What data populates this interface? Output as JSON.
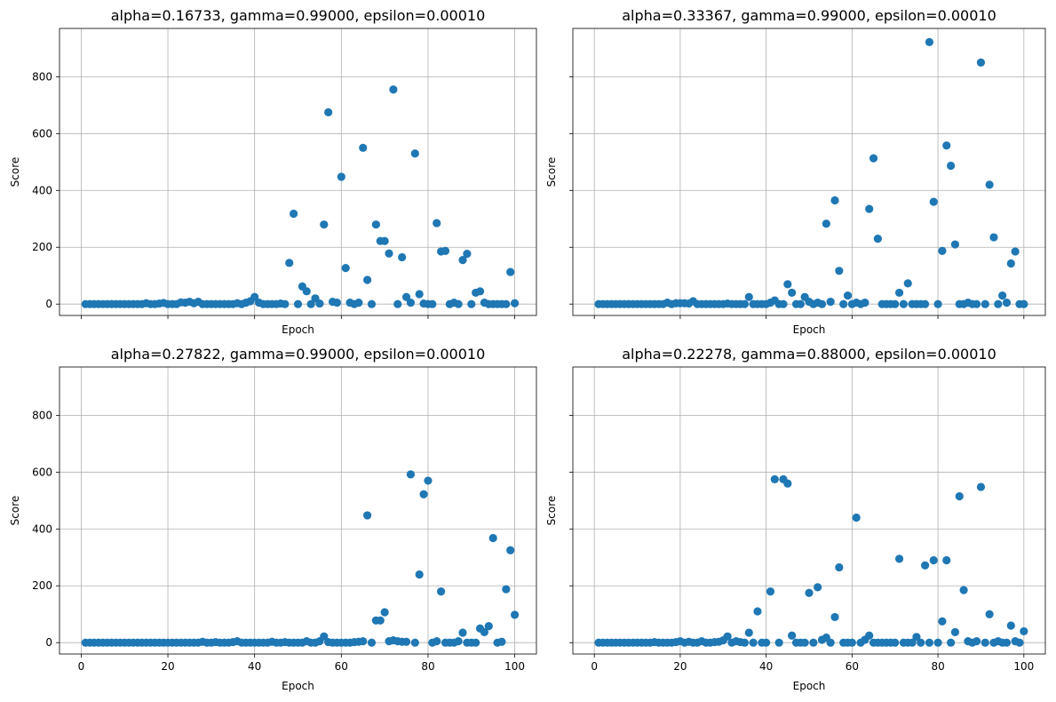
{
  "figure": {
    "background": "#ffffff",
    "marker_color": "#1f77b4",
    "grid_color": "#b0b0b0"
  },
  "chart_data": [
    {
      "type": "scatter",
      "title": "alpha=0.16733, gamma=0.99000, epsilon=0.00010",
      "xlabel": "Epoch",
      "ylabel": "Score",
      "xlim": [
        -5,
        105
      ],
      "ylim": [
        -40,
        970
      ],
      "xticks": [
        0,
        20,
        40,
        60,
        80,
        100
      ],
      "yticks": [
        0,
        200,
        400,
        600,
        800
      ],
      "show_xticklabels": false,
      "show_yticklabels": true,
      "grid": true,
      "x": [
        1,
        2,
        3,
        4,
        5,
        6,
        7,
        8,
        9,
        10,
        11,
        12,
        13,
        14,
        15,
        16,
        17,
        18,
        19,
        20,
        21,
        22,
        23,
        24,
        25,
        26,
        27,
        28,
        29,
        30,
        31,
        32,
        33,
        34,
        35,
        36,
        37,
        38,
        39,
        40,
        41,
        42,
        43,
        44,
        45,
        46,
        47,
        48,
        49,
        50,
        51,
        52,
        53,
        54,
        55,
        56,
        57,
        58,
        59,
        60,
        61,
        62,
        63,
        64,
        65,
        66,
        67,
        68,
        69,
        70,
        71,
        72,
        73,
        74,
        75,
        76,
        77,
        78,
        79,
        80,
        81,
        82,
        83,
        84,
        85,
        86,
        87,
        88,
        89,
        90,
        91,
        92,
        93,
        94,
        95,
        96,
        97,
        98,
        99,
        100
      ],
      "y": [
        0,
        0,
        0,
        0,
        0,
        0,
        0,
        0,
        0,
        0,
        0,
        0,
        0,
        0,
        3,
        0,
        0,
        2,
        4,
        0,
        0,
        0,
        6,
        5,
        8,
        3,
        8,
        0,
        0,
        0,
        0,
        0,
        0,
        0,
        0,
        3,
        0,
        5,
        10,
        25,
        5,
        0,
        0,
        0,
        0,
        2,
        0,
        145,
        318,
        0,
        62,
        45,
        0,
        20,
        2,
        280,
        675,
        8,
        5,
        448,
        127,
        5,
        0,
        5,
        550,
        85,
        0,
        280,
        222,
        222,
        178,
        755,
        0,
        165,
        25,
        5,
        530,
        35,
        2,
        0,
        0,
        285,
        185,
        187,
        0,
        5,
        0,
        155,
        177,
        0,
        40,
        45,
        5,
        0,
        0,
        0,
        0,
        0,
        113,
        3
      ]
    },
    {
      "type": "scatter",
      "title": "alpha=0.33367, gamma=0.99000, epsilon=0.00010",
      "xlabel": "Epoch",
      "ylabel": "Score",
      "xlim": [
        -5,
        105
      ],
      "ylim": [
        -40,
        970
      ],
      "xticks": [
        0,
        20,
        40,
        60,
        80,
        100
      ],
      "yticks": [
        0,
        200,
        400,
        600,
        800
      ],
      "show_xticklabels": false,
      "show_yticklabels": false,
      "grid": true,
      "x": [
        1,
        2,
        3,
        4,
        5,
        6,
        7,
        8,
        9,
        10,
        11,
        12,
        13,
        14,
        15,
        16,
        17,
        18,
        19,
        20,
        21,
        22,
        23,
        24,
        25,
        26,
        27,
        28,
        29,
        30,
        31,
        32,
        33,
        34,
        35,
        36,
        37,
        38,
        39,
        40,
        41,
        42,
        43,
        44,
        45,
        46,
        47,
        48,
        49,
        50,
        51,
        52,
        53,
        54,
        55,
        56,
        57,
        58,
        59,
        60,
        61,
        62,
        63,
        64,
        65,
        66,
        67,
        68,
        69,
        70,
        71,
        72,
        73,
        74,
        75,
        76,
        77,
        78,
        79,
        80,
        81,
        82,
        83,
        84,
        85,
        86,
        87,
        88,
        89,
        90,
        91,
        92,
        93,
        94,
        95,
        96,
        97,
        98,
        99,
        100
      ],
      "y": [
        0,
        0,
        0,
        0,
        0,
        0,
        0,
        0,
        0,
        0,
        0,
        0,
        0,
        0,
        0,
        0,
        5,
        0,
        3,
        3,
        3,
        2,
        10,
        0,
        0,
        0,
        0,
        0,
        0,
        0,
        2,
        0,
        0,
        0,
        0,
        25,
        0,
        0,
        0,
        0,
        5,
        13,
        0,
        0,
        70,
        40,
        0,
        0,
        25,
        8,
        0,
        5,
        0,
        283,
        8,
        365,
        117,
        0,
        30,
        0,
        5,
        0,
        5,
        335,
        513,
        230,
        0,
        0,
        0,
        0,
        40,
        0,
        73,
        0,
        0,
        0,
        0,
        922,
        360,
        0,
        187,
        558,
        487,
        210,
        0,
        0,
        5,
        0,
        0,
        850,
        0,
        420,
        235,
        0,
        30,
        5,
        143,
        185,
        0,
        0
      ]
    },
    {
      "type": "scatter",
      "title": "alpha=0.27822, gamma=0.99000, epsilon=0.00010",
      "xlabel": "Epoch",
      "ylabel": "Score",
      "xlim": [
        -5,
        105
      ],
      "ylim": [
        -40,
        970
      ],
      "xticks": [
        0,
        20,
        40,
        60,
        80,
        100
      ],
      "yticks": [
        0,
        200,
        400,
        600,
        800
      ],
      "show_xticklabels": true,
      "show_yticklabels": true,
      "grid": true,
      "x": [
        1,
        2,
        3,
        4,
        5,
        6,
        7,
        8,
        9,
        10,
        11,
        12,
        13,
        14,
        15,
        16,
        17,
        18,
        19,
        20,
        21,
        22,
        23,
        24,
        25,
        26,
        27,
        28,
        29,
        30,
        31,
        32,
        33,
        34,
        35,
        36,
        37,
        38,
        39,
        40,
        41,
        42,
        43,
        44,
        45,
        46,
        47,
        48,
        49,
        50,
        51,
        52,
        53,
        54,
        55,
        56,
        57,
        58,
        59,
        60,
        61,
        62,
        63,
        64,
        65,
        66,
        67,
        68,
        69,
        70,
        71,
        72,
        73,
        74,
        75,
        76,
        77,
        78,
        79,
        80,
        81,
        82,
        83,
        84,
        85,
        86,
        87,
        88,
        89,
        90,
        91,
        92,
        93,
        94,
        95,
        96,
        97,
        98,
        99,
        100
      ],
      "y": [
        0,
        0,
        0,
        0,
        0,
        0,
        0,
        0,
        0,
        0,
        0,
        0,
        0,
        0,
        0,
        0,
        0,
        0,
        0,
        0,
        0,
        0,
        0,
        0,
        0,
        0,
        0,
        3,
        0,
        0,
        2,
        0,
        0,
        0,
        2,
        5,
        0,
        0,
        0,
        0,
        0,
        0,
        0,
        3,
        0,
        0,
        2,
        0,
        0,
        0,
        0,
        5,
        0,
        0,
        5,
        22,
        2,
        0,
        0,
        0,
        0,
        0,
        2,
        3,
        5,
        448,
        0,
        78,
        78,
        107,
        5,
        8,
        5,
        3,
        3,
        592,
        0,
        240,
        522,
        570,
        0,
        5,
        180,
        0,
        0,
        0,
        5,
        35,
        0,
        0,
        0,
        50,
        37,
        58,
        368,
        0,
        3,
        188,
        325,
        98
      ]
    },
    {
      "type": "scatter",
      "title": "alpha=0.22278, gamma=0.88000, epsilon=0.00010",
      "xlabel": "Epoch",
      "ylabel": "Score",
      "xlim": [
        -5,
        105
      ],
      "ylim": [
        -40,
        970
      ],
      "xticks": [
        0,
        20,
        40,
        60,
        80,
        100
      ],
      "yticks": [
        0,
        200,
        400,
        600,
        800
      ],
      "show_xticklabels": true,
      "show_yticklabels": false,
      "grid": true,
      "x": [
        1,
        2,
        3,
        4,
        5,
        6,
        7,
        8,
        9,
        10,
        11,
        12,
        13,
        14,
        15,
        16,
        17,
        18,
        19,
        20,
        21,
        22,
        23,
        24,
        25,
        26,
        27,
        28,
        29,
        30,
        31,
        32,
        33,
        34,
        35,
        36,
        37,
        38,
        39,
        40,
        41,
        42,
        43,
        44,
        45,
        46,
        47,
        48,
        49,
        50,
        51,
        52,
        53,
        54,
        55,
        56,
        57,
        58,
        59,
        60,
        61,
        62,
        63,
        64,
        65,
        66,
        67,
        68,
        69,
        70,
        71,
        72,
        73,
        74,
        75,
        76,
        77,
        78,
        79,
        80,
        81,
        82,
        83,
        84,
        85,
        86,
        87,
        88,
        89,
        90,
        91,
        92,
        93,
        94,
        95,
        96,
        97,
        98,
        99,
        100
      ],
      "y": [
        0,
        0,
        0,
        0,
        0,
        0,
        0,
        0,
        0,
        0,
        0,
        0,
        0,
        2,
        0,
        0,
        0,
        0,
        2,
        5,
        0,
        3,
        0,
        0,
        5,
        0,
        0,
        2,
        3,
        8,
        22,
        0,
        5,
        2,
        0,
        35,
        0,
        110,
        0,
        0,
        180,
        575,
        0,
        575,
        560,
        25,
        0,
        0,
        0,
        175,
        0,
        195,
        10,
        18,
        0,
        90,
        265,
        0,
        0,
        0,
        440,
        0,
        10,
        25,
        0,
        0,
        0,
        0,
        0,
        0,
        295,
        0,
        0,
        0,
        20,
        0,
        272,
        0,
        290,
        0,
        75,
        290,
        0,
        37,
        515,
        185,
        5,
        0,
        5,
        548,
        0,
        100,
        0,
        5,
        0,
        0,
        60,
        5,
        0,
        40
      ]
    }
  ]
}
